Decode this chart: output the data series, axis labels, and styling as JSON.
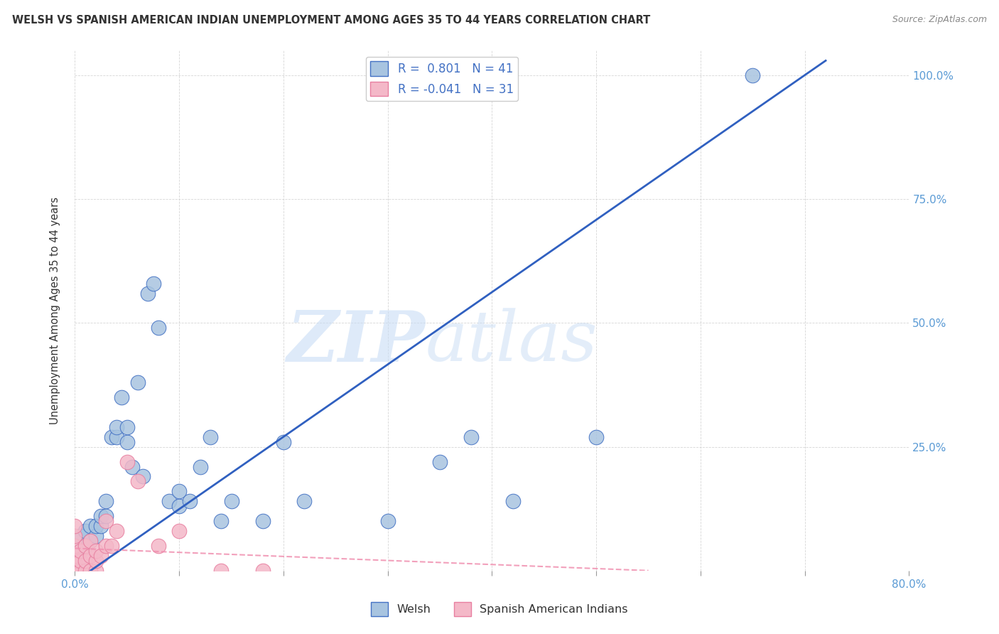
{
  "title": "WELSH VS SPANISH AMERICAN INDIAN UNEMPLOYMENT AMONG AGES 35 TO 44 YEARS CORRELATION CHART",
  "source": "Source: ZipAtlas.com",
  "ylabel": "Unemployment Among Ages 35 to 44 years",
  "xlim": [
    0.0,
    0.8
  ],
  "ylim": [
    0.0,
    1.05
  ],
  "x_ticks": [
    0.0,
    0.1,
    0.2,
    0.3,
    0.4,
    0.5,
    0.6,
    0.7,
    0.8
  ],
  "y_ticks": [
    0.0,
    0.25,
    0.5,
    0.75,
    1.0
  ],
  "y_tick_labels": [
    "",
    "25.0%",
    "50.0%",
    "75.0%",
    "100.0%"
  ],
  "welsh_R": 0.801,
  "welsh_N": 41,
  "spanish_R": -0.041,
  "spanish_N": 31,
  "welsh_color": "#a8c4e0",
  "welsh_edge_color": "#4472c4",
  "spanish_color": "#f4b8c8",
  "spanish_edge_color": "#e87fa0",
  "trend_welsh_color": "#3060c0",
  "trend_spanish_color": "#f090b0",
  "welsh_x": [
    0.005,
    0.005,
    0.01,
    0.01,
    0.015,
    0.015,
    0.02,
    0.02,
    0.025,
    0.025,
    0.03,
    0.03,
    0.035,
    0.04,
    0.04,
    0.045,
    0.05,
    0.05,
    0.055,
    0.06,
    0.065,
    0.07,
    0.075,
    0.08,
    0.09,
    0.1,
    0.1,
    0.11,
    0.12,
    0.13,
    0.14,
    0.15,
    0.18,
    0.2,
    0.22,
    0.3,
    0.35,
    0.38,
    0.42,
    0.5,
    0.65
  ],
  "welsh_y": [
    0.04,
    0.07,
    0.05,
    0.08,
    0.06,
    0.09,
    0.07,
    0.09,
    0.09,
    0.11,
    0.11,
    0.14,
    0.27,
    0.27,
    0.29,
    0.35,
    0.26,
    0.29,
    0.21,
    0.38,
    0.19,
    0.56,
    0.58,
    0.49,
    0.14,
    0.13,
    0.16,
    0.14,
    0.21,
    0.27,
    0.1,
    0.14,
    0.1,
    0.26,
    0.14,
    0.1,
    0.22,
    0.27,
    0.14,
    0.27,
    1.0
  ],
  "spanish_x": [
    0.0,
    0.0,
    0.0,
    0.0,
    0.0,
    0.0,
    0.0,
    0.0,
    0.005,
    0.005,
    0.005,
    0.01,
    0.01,
    0.01,
    0.015,
    0.015,
    0.015,
    0.02,
    0.02,
    0.02,
    0.025,
    0.03,
    0.03,
    0.035,
    0.04,
    0.05,
    0.06,
    0.08,
    0.1,
    0.14,
    0.18
  ],
  "spanish_y": [
    0.0,
    0.0,
    0.0,
    0.02,
    0.03,
    0.05,
    0.07,
    0.09,
    0.0,
    0.02,
    0.04,
    0.0,
    0.02,
    0.05,
    0.0,
    0.03,
    0.06,
    0.0,
    0.02,
    0.04,
    0.03,
    0.05,
    0.1,
    0.05,
    0.08,
    0.22,
    0.18,
    0.05,
    0.08,
    0.0,
    0.0
  ],
  "welsh_trend_x0": 0.015,
  "welsh_trend_y0": 0.0,
  "welsh_trend_x1": 0.72,
  "welsh_trend_y1": 1.03,
  "spanish_trend_x0": 0.0,
  "spanish_trend_y0": 0.045,
  "spanish_trend_x1": 0.55,
  "spanish_trend_y1": 0.0
}
